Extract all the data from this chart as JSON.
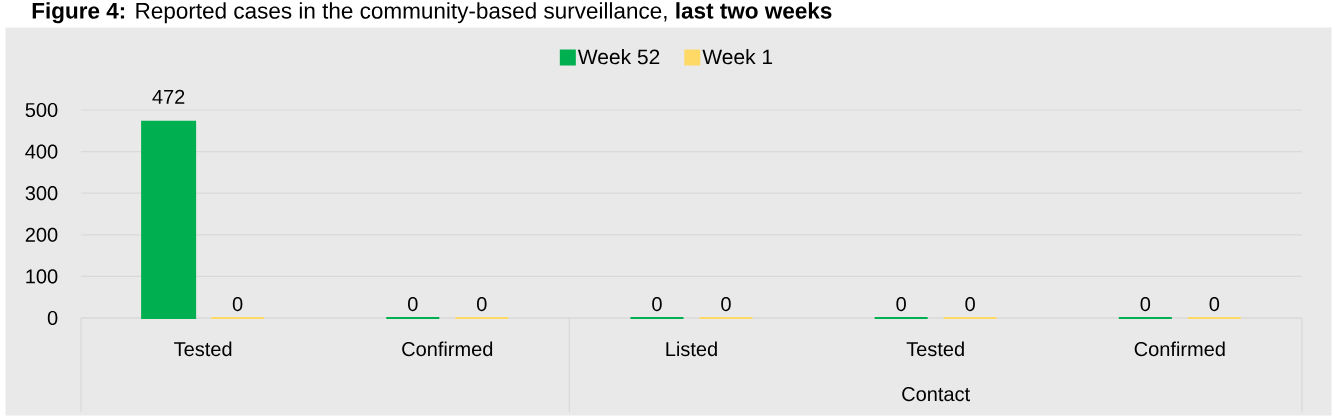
{
  "chart_data": {
    "type": "bar",
    "title": "**Figure 4:** Reported cases in the community-based surveillance, **last two weeks**",
    "categories": [
      "Tested",
      "Confirmed",
      "Listed",
      "Tested",
      "Confirmed"
    ],
    "series": [
      {
        "name": "Week 52",
        "color": "#00b050",
        "values": [
          472,
          0,
          0,
          0,
          0
        ]
      },
      {
        "name": "Week 1",
        "color": "#ffd966",
        "values": [
          0,
          0,
          0,
          0,
          0
        ]
      }
    ],
    "ylim": [
      0,
      500
    ],
    "yticks": [
      0,
      100,
      200,
      300,
      400,
      500
    ],
    "grid": "y",
    "legend": "top",
    "data_labels": true,
    "annotations": [
      "Contact"
    ]
  }
}
